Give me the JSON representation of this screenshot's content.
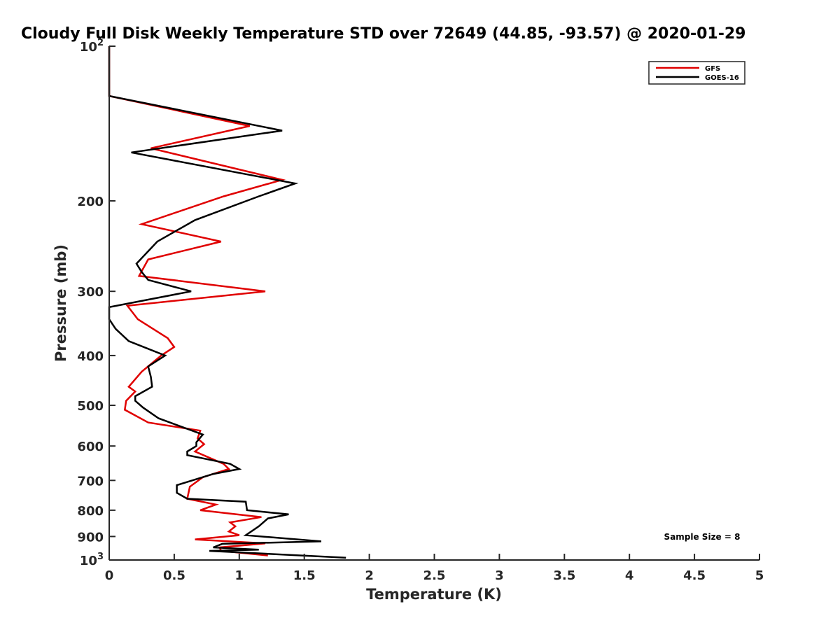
{
  "chart_data": {
    "type": "line",
    "title": "Cloudy Full Disk Weekly Temperature STD over 72649 (44.85, -93.57) @ 2020-01-29",
    "xlabel": "Temperature (K)",
    "ylabel": "Pressure (mb)",
    "xlim": [
      0,
      5
    ],
    "ylim": [
      100,
      1000
    ],
    "yscale": "log",
    "y_direction": "reverse",
    "x_ticks": [
      {
        "value": 0,
        "label": "0"
      },
      {
        "value": 0.5,
        "label": "0.5"
      },
      {
        "value": 1,
        "label": "1"
      },
      {
        "value": 1.5,
        "label": "1.5"
      },
      {
        "value": 2,
        "label": "2"
      },
      {
        "value": 2.5,
        "label": "2.5"
      },
      {
        "value": 3,
        "label": "3"
      },
      {
        "value": 3.5,
        "label": "3.5"
      },
      {
        "value": 4,
        "label": "4"
      },
      {
        "value": 4.5,
        "label": "4.5"
      },
      {
        "value": 5,
        "label": "5"
      }
    ],
    "y_ticks": [
      {
        "value": 100,
        "label": "10",
        "sup": "2"
      },
      {
        "value": 200,
        "label": "200"
      },
      {
        "value": 300,
        "label": "300"
      },
      {
        "value": 400,
        "label": "400"
      },
      {
        "value": 500,
        "label": "500"
      },
      {
        "value": 600,
        "label": "600"
      },
      {
        "value": 700,
        "label": "700"
      },
      {
        "value": 800,
        "label": "800"
      },
      {
        "value": 900,
        "label": "900"
      },
      {
        "value": 1000,
        "label": "10",
        "sup": "3"
      }
    ],
    "grid": false,
    "legend_position": "top-right",
    "series": [
      {
        "name": "GFS",
        "color": "#e00000",
        "points": [
          [
            0,
            100
          ],
          [
            0,
            125
          ],
          [
            1.08,
            143
          ],
          [
            0.32,
            158
          ],
          [
            1.33,
            182
          ],
          [
            0.88,
            196
          ],
          [
            0.25,
            222
          ],
          [
            0.86,
            240
          ],
          [
            0.3,
            260
          ],
          [
            0.23,
            280
          ],
          [
            1.2,
            300
          ],
          [
            0.14,
            320
          ],
          [
            0.22,
            340
          ],
          [
            0.45,
            370
          ],
          [
            0.5,
            385
          ],
          [
            0.4,
            400
          ],
          [
            0.25,
            430
          ],
          [
            0.15,
            460
          ],
          [
            0.2,
            470
          ],
          [
            0.13,
            490
          ],
          [
            0.12,
            510
          ],
          [
            0.3,
            540
          ],
          [
            0.7,
            560
          ],
          [
            0.68,
            580
          ],
          [
            0.73,
            595
          ],
          [
            0.66,
            615
          ],
          [
            0.88,
            650
          ],
          [
            0.92,
            665
          ],
          [
            0.72,
            690
          ],
          [
            0.62,
            720
          ],
          [
            0.6,
            760
          ],
          [
            0.82,
            780
          ],
          [
            0.7,
            800
          ],
          [
            1.17,
            825
          ],
          [
            0.93,
            845
          ],
          [
            0.97,
            860
          ],
          [
            0.92,
            880
          ],
          [
            1.0,
            895
          ],
          [
            0.66,
            912
          ],
          [
            1.2,
            928
          ],
          [
            0.85,
            945
          ],
          [
            0.86,
            960
          ],
          [
            1.22,
            980
          ]
        ]
      },
      {
        "name": "GOES-16",
        "color": "#000000",
        "points": [
          [
            0,
            100
          ],
          [
            0,
            125
          ],
          [
            1.33,
            146
          ],
          [
            0.17,
            161
          ],
          [
            1.43,
            185
          ],
          [
            1.15,
            196
          ],
          [
            0.66,
            218
          ],
          [
            0.37,
            240
          ],
          [
            0.21,
            265
          ],
          [
            0.25,
            275
          ],
          [
            0.3,
            285
          ],
          [
            0.63,
            300
          ],
          [
            0,
            322
          ],
          [
            0,
            340
          ],
          [
            0.05,
            355
          ],
          [
            0.15,
            375
          ],
          [
            0.43,
            400
          ],
          [
            0.3,
            420
          ],
          [
            0.32,
            440
          ],
          [
            0.33,
            460
          ],
          [
            0.2,
            480
          ],
          [
            0.2,
            490
          ],
          [
            0.26,
            505
          ],
          [
            0.38,
            530
          ],
          [
            0.72,
            570
          ],
          [
            0.67,
            590
          ],
          [
            0.67,
            600
          ],
          [
            0.6,
            615
          ],
          [
            0.6,
            625
          ],
          [
            0.93,
            650
          ],
          [
            1.0,
            665
          ],
          [
            0.8,
            680
          ],
          [
            0.52,
            715
          ],
          [
            0.52,
            740
          ],
          [
            0.6,
            760
          ],
          [
            1.05,
            770
          ],
          [
            1.06,
            800
          ],
          [
            1.38,
            815
          ],
          [
            1.22,
            830
          ],
          [
            1.15,
            860
          ],
          [
            1.05,
            895
          ],
          [
            1.63,
            920
          ],
          [
            0.87,
            930
          ],
          [
            0.8,
            945
          ],
          [
            1.15,
            955
          ],
          [
            0.77,
            960
          ],
          [
            1.82,
            990
          ]
        ]
      }
    ],
    "annotation": "Sample Size = 8"
  }
}
